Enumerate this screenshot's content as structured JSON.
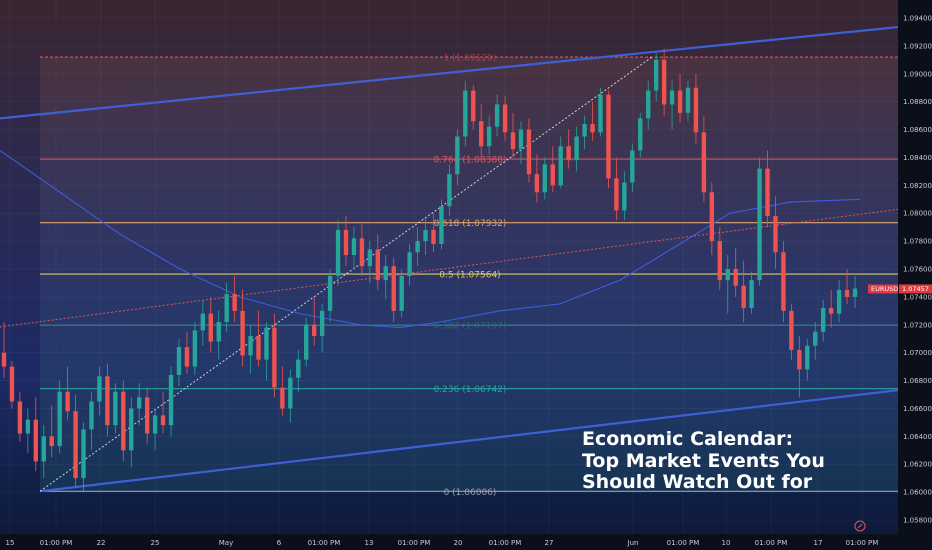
{
  "chart_data": {
    "type": "candlestick",
    "symbol": "EURUSD",
    "last_price": "1.07457",
    "y_ticks": [
      "1.09400",
      "1.09200",
      "1.09000",
      "1.08800",
      "1.08600",
      "1.08400",
      "1.08200",
      "1.08000",
      "1.07800",
      "1.07600",
      "1.07400",
      "1.07200",
      "1.07000",
      "1.06800",
      "1.06600",
      "1.06400",
      "1.06200",
      "1.06000",
      "1.05800"
    ],
    "ylim": [
      1.0575,
      1.095
    ],
    "x_ticks": [
      "15",
      "01:00 PM",
      "22",
      "25",
      "May",
      "6",
      "01:00 PM",
      "13",
      "01:00 PM",
      "20",
      "01:00 PM",
      "27",
      "Jun",
      "01:00 PM",
      "10",
      "01:00 PM",
      "17",
      "01:00 PM"
    ],
    "fib_levels": [
      {
        "ratio": 0,
        "price": 1.06006,
        "label": "0 (1.06006)",
        "color": "#9aa0ad"
      },
      {
        "ratio": 0.236,
        "price": 1.06742,
        "label": "0.236 (1.06742)",
        "color": "#26a69a"
      },
      {
        "ratio": 0.382,
        "price": 1.07197,
        "label": "0.382 (1.07197)",
        "color": "#2b8a7d"
      },
      {
        "ratio": 0.5,
        "price": 1.07564,
        "label": "0.5 (1.07564)",
        "color": "#d9c96a"
      },
      {
        "ratio": 0.618,
        "price": 1.07932,
        "label": "0.618 (1.07932)",
        "color": "#e0a56a"
      },
      {
        "ratio": 0.764,
        "price": 1.08388,
        "label": "0.764 (1.08388)",
        "color": "#e0555e"
      },
      {
        "ratio": 1,
        "price": 1.0912,
        "label": "1 (1.09120)",
        "color": "#e0555e"
      }
    ],
    "channel": {
      "upper": {
        "x1": 0,
        "y1": 1.0868,
        "x2": 932,
        "y2": 1.0936
      },
      "lower": {
        "x1": 40,
        "y1": 1.06006,
        "x2": 932,
        "y2": 1.0676
      },
      "mid": {
        "x1": 0,
        "y1": 1.07185,
        "x2": 932,
        "y2": 1.0806
      }
    },
    "trend_line": {
      "x1": 40,
      "y1": 1.06006,
      "x2": 652,
      "y2": 1.0912
    },
    "candles": [
      [
        1.07,
        1.0722,
        1.0682,
        1.069
      ],
      [
        1.069,
        1.0694,
        1.066,
        1.0665
      ],
      [
        1.0665,
        1.0672,
        1.0636,
        1.0642
      ],
      [
        1.0642,
        1.066,
        1.0628,
        1.0652
      ],
      [
        1.0652,
        1.0668,
        1.0615,
        1.0622
      ],
      [
        1.0622,
        1.0648,
        1.061,
        1.064
      ],
      [
        1.064,
        1.0662,
        1.0625,
        1.0633
      ],
      [
        1.0633,
        1.068,
        1.0628,
        1.0672
      ],
      [
        1.0672,
        1.069,
        1.0652,
        1.0658
      ],
      [
        1.0658,
        1.067,
        1.0604,
        1.061
      ],
      [
        1.061,
        1.065,
        1.0601,
        1.0645
      ],
      [
        1.0645,
        1.0672,
        1.063,
        1.0665
      ],
      [
        1.0665,
        1.069,
        1.0655,
        1.0683
      ],
      [
        1.0683,
        1.0692,
        1.064,
        1.0648
      ],
      [
        1.0648,
        1.0678,
        1.0642,
        1.0672
      ],
      [
        1.0672,
        1.068,
        1.0622,
        1.063
      ],
      [
        1.063,
        1.0668,
        1.0618,
        1.066
      ],
      [
        1.066,
        1.0678,
        1.0648,
        1.0668
      ],
      [
        1.0668,
        1.0675,
        1.0635,
        1.0642
      ],
      [
        1.0642,
        1.066,
        1.063,
        1.0655
      ],
      [
        1.0655,
        1.0672,
        1.0642,
        1.0648
      ],
      [
        1.0648,
        1.069,
        1.064,
        1.0684
      ],
      [
        1.0684,
        1.071,
        1.0676,
        1.0704
      ],
      [
        1.0704,
        1.0715,
        1.0685,
        1.069
      ],
      [
        1.069,
        1.0722,
        1.0684,
        1.0716
      ],
      [
        1.0716,
        1.0738,
        1.0705,
        1.0728
      ],
      [
        1.0728,
        1.074,
        1.07,
        1.0708
      ],
      [
        1.0708,
        1.073,
        1.0695,
        1.0722
      ],
      [
        1.0722,
        1.075,
        1.0715,
        1.0742
      ],
      [
        1.0742,
        1.0755,
        1.0722,
        1.073
      ],
      [
        1.073,
        1.0745,
        1.069,
        1.0698
      ],
      [
        1.0698,
        1.072,
        1.0685,
        1.0712
      ],
      [
        1.0712,
        1.073,
        1.069,
        1.0695
      ],
      [
        1.0695,
        1.0722,
        1.068,
        1.0718
      ],
      [
        1.0718,
        1.0728,
        1.0668,
        1.0675
      ],
      [
        1.0675,
        1.069,
        1.0655,
        1.066
      ],
      [
        1.066,
        1.0688,
        1.065,
        1.0682
      ],
      [
        1.0682,
        1.0702,
        1.0672,
        1.0695
      ],
      [
        1.0695,
        1.0725,
        1.069,
        1.072
      ],
      [
        1.072,
        1.074,
        1.0705,
        1.0712
      ],
      [
        1.0712,
        1.0735,
        1.07,
        1.073
      ],
      [
        1.073,
        1.076,
        1.0722,
        1.0755
      ],
      [
        1.0755,
        1.0795,
        1.0748,
        1.0788
      ],
      [
        1.0788,
        1.0798,
        1.0762,
        1.077
      ],
      [
        1.077,
        1.079,
        1.076,
        1.0782
      ],
      [
        1.0782,
        1.0792,
        1.0755,
        1.0762
      ],
      [
        1.0762,
        1.078,
        1.075,
        1.0774
      ],
      [
        1.0774,
        1.0785,
        1.0745,
        1.0752
      ],
      [
        1.0752,
        1.077,
        1.0738,
        1.0762
      ],
      [
        1.0762,
        1.0768,
        1.0722,
        1.073
      ],
      [
        1.073,
        1.076,
        1.0725,
        1.0755
      ],
      [
        1.0755,
        1.0778,
        1.0748,
        1.0772
      ],
      [
        1.0772,
        1.079,
        1.0762,
        1.078
      ],
      [
        1.078,
        1.0796,
        1.077,
        1.0788
      ],
      [
        1.0788,
        1.08,
        1.0772,
        1.0778
      ],
      [
        1.0778,
        1.081,
        1.0774,
        1.0805
      ],
      [
        1.0805,
        1.0835,
        1.0798,
        1.0828
      ],
      [
        1.0828,
        1.086,
        1.082,
        1.0855
      ],
      [
        1.0855,
        1.0895,
        1.0848,
        1.0888
      ],
      [
        1.0888,
        1.0892,
        1.086,
        1.0866
      ],
      [
        1.0866,
        1.0878,
        1.084,
        1.0848
      ],
      [
        1.0848,
        1.087,
        1.0842,
        1.0862
      ],
      [
        1.0862,
        1.0885,
        1.0855,
        1.0878
      ],
      [
        1.0878,
        1.0884,
        1.0852,
        1.0858
      ],
      [
        1.0858,
        1.0872,
        1.084,
        1.0846
      ],
      [
        1.0846,
        1.0866,
        1.0835,
        1.086
      ],
      [
        1.086,
        1.0868,
        1.0822,
        1.0828
      ],
      [
        1.0828,
        1.0842,
        1.0808,
        1.0815
      ],
      [
        1.0815,
        1.084,
        1.081,
        1.0835
      ],
      [
        1.0835,
        1.0848,
        1.0815,
        1.082
      ],
      [
        1.082,
        1.0855,
        1.0818,
        1.0848
      ],
      [
        1.0848,
        1.086,
        1.0832,
        1.0838
      ],
      [
        1.0838,
        1.0862,
        1.083,
        1.0855
      ],
      [
        1.0855,
        1.087,
        1.0846,
        1.0864
      ],
      [
        1.0864,
        1.088,
        1.0852,
        1.0858
      ],
      [
        1.0858,
        1.089,
        1.0855,
        1.0885
      ],
      [
        1.0885,
        1.0888,
        1.0818,
        1.0825
      ],
      [
        1.0825,
        1.084,
        1.0795,
        1.0802
      ],
      [
        1.0802,
        1.083,
        1.0795,
        1.0822
      ],
      [
        1.0822,
        1.085,
        1.0815,
        1.0845
      ],
      [
        1.0845,
        1.0872,
        1.084,
        1.0868
      ],
      [
        1.0868,
        1.0895,
        1.086,
        1.0888
      ],
      [
        1.0888,
        1.0915,
        1.088,
        1.091
      ],
      [
        1.091,
        1.0918,
        1.087,
        1.0878
      ],
      [
        1.0878,
        1.0895,
        1.086,
        1.0888
      ],
      [
        1.0888,
        1.09,
        1.0865,
        1.0872
      ],
      [
        1.0872,
        1.0895,
        1.0866,
        1.089
      ],
      [
        1.089,
        1.09,
        1.085,
        1.0858
      ],
      [
        1.0858,
        1.087,
        1.0808,
        1.0815
      ],
      [
        1.0815,
        1.0822,
        1.077,
        1.078
      ],
      [
        1.078,
        1.079,
        1.0745,
        1.0752
      ],
      [
        1.0752,
        1.077,
        1.0728,
        1.076
      ],
      [
        1.076,
        1.0775,
        1.074,
        1.0748
      ],
      [
        1.0748,
        1.0766,
        1.0722,
        1.0732
      ],
      [
        1.0732,
        1.0758,
        1.0728,
        1.0752
      ],
      [
        1.0752,
        1.084,
        1.0748,
        1.0832
      ],
      [
        1.0832,
        1.0845,
        1.079,
        1.0798
      ],
      [
        1.0798,
        1.0812,
        1.076,
        1.0772
      ],
      [
        1.0772,
        1.078,
        1.0722,
        1.073
      ],
      [
        1.073,
        1.0735,
        1.0695,
        1.0702
      ],
      [
        1.0702,
        1.0712,
        1.0668,
        1.0688
      ],
      [
        1.0688,
        1.071,
        1.068,
        1.0705
      ],
      [
        1.0705,
        1.0722,
        1.0695,
        1.0715
      ],
      [
        1.0715,
        1.0738,
        1.0708,
        1.0732
      ],
      [
        1.0732,
        1.0745,
        1.0718,
        1.0728
      ],
      [
        1.0728,
        1.0752,
        1.0722,
        1.0745
      ],
      [
        1.0745,
        1.076,
        1.0735,
        1.074
      ],
      [
        1.074,
        1.0755,
        1.0732,
        1.0746
      ]
    ],
    "moving_average": [
      [
        0,
        1.0845
      ],
      [
        60,
        1.0815
      ],
      [
        120,
        1.0785
      ],
      [
        180,
        1.076
      ],
      [
        240,
        1.074
      ],
      [
        300,
        1.0728
      ],
      [
        360,
        1.072
      ],
      [
        400,
        1.0718
      ],
      [
        440,
        1.0722
      ],
      [
        500,
        1.073
      ],
      [
        560,
        1.0735
      ],
      [
        620,
        1.0752
      ],
      [
        680,
        1.0778
      ],
      [
        730,
        1.08
      ],
      [
        790,
        1.0808
      ],
      [
        860,
        1.081
      ]
    ]
  },
  "headline": {
    "line1": "Economic Calendar:",
    "line2": "Top Market Events You",
    "line3": "Should Watch Out for"
  },
  "colors": {
    "bull": "#26a69a",
    "bear": "#ef5350",
    "channel": "#3f5fd6",
    "midline": "#e0555e",
    "ma": "#3b5ee0"
  }
}
